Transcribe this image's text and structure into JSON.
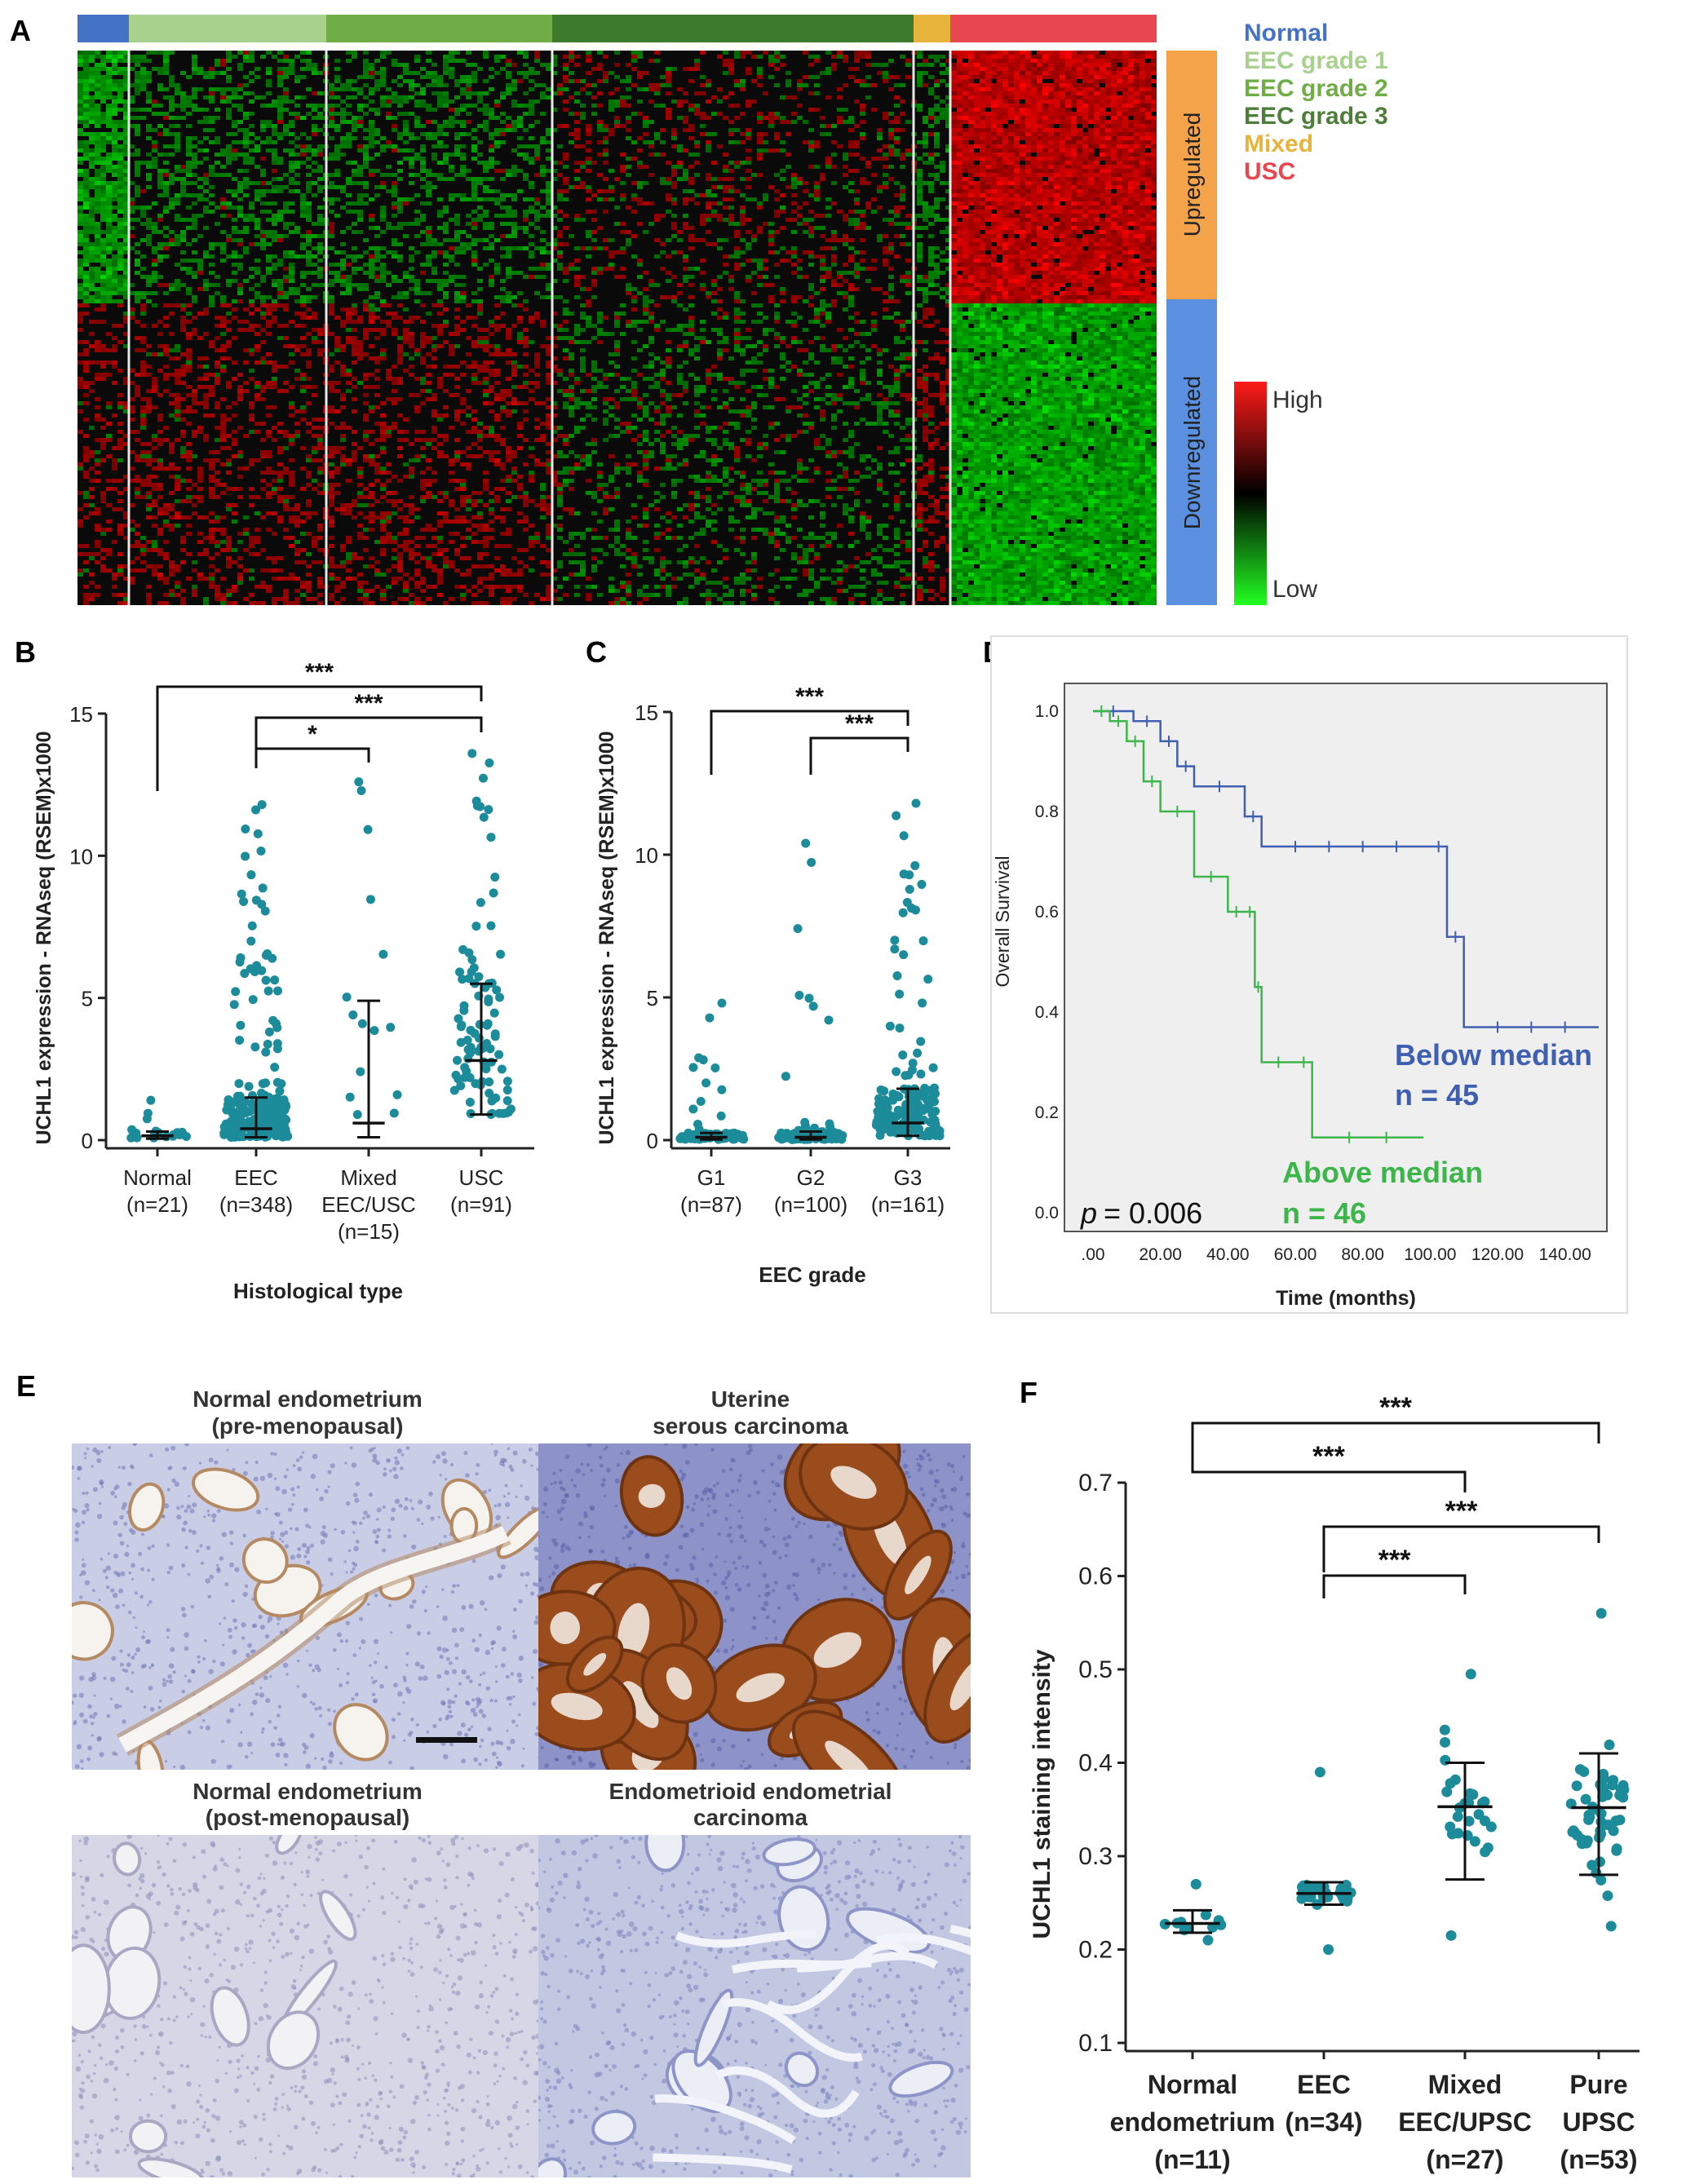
{
  "panels": {
    "A": "A",
    "B": "B",
    "C": "C",
    "D": "D",
    "E": "E",
    "F": "F"
  },
  "panel_a": {
    "legend": [
      {
        "label": "Normal",
        "color": "#4472c4"
      },
      {
        "label": "EEC grade 1",
        "color": "#a9d18e"
      },
      {
        "label": "EEC grade 2",
        "color": "#70ad47"
      },
      {
        "label": "EEC grade 3",
        "color": "#4e7e3a"
      },
      {
        "label": "Mixed",
        "color": "#e8b33a"
      },
      {
        "label": "USC",
        "color": "#e8474f"
      }
    ],
    "groups": [
      {
        "name": "Normal",
        "color": "#4472c4"
      },
      {
        "name": "EEC grade 1",
        "color": "#a9d18e"
      },
      {
        "name": "EEC grade 2",
        "color": "#70ad47"
      },
      {
        "name": "EEC grade 3",
        "color": "#3d7a2e"
      },
      {
        "name": "Mixed",
        "color": "#e8b33a"
      },
      {
        "name": "USC",
        "color": "#e8474f"
      }
    ],
    "up_label": "Upregulated",
    "down_label": "Downregulated",
    "up_color": "#f4a34a",
    "down_color": "#5b8fe0",
    "scale_high": "High",
    "scale_low": "Low"
  },
  "chart_data": [
    {
      "id": "B",
      "type": "scatter",
      "ylabel": "UCHL1 expression - RNAseq  (RSEM)x1000",
      "xlabel": "Histological type",
      "ylim": [
        0,
        15
      ],
      "yticks": [
        "0",
        "5",
        "10",
        "15"
      ],
      "categories": [
        {
          "label": [
            "Normal",
            "(n=21)"
          ],
          "n": 21,
          "median": 0.15,
          "q1": 0.05,
          "q3": 0.3,
          "max": 1.4
        },
        {
          "label": [
            "EEC",
            "(n=348)"
          ],
          "n": 348,
          "median": 0.4,
          "q1": 0.1,
          "q3": 1.5,
          "max": 11.8
        },
        {
          "label": [
            "Mixed",
            "EEC/USC",
            "(n=15)"
          ],
          "n": 15,
          "median": 0.6,
          "q1": 0.1,
          "q3": 4.9,
          "max": 12.6
        },
        {
          "label": [
            "USC",
            "(n=91)"
          ],
          "n": 91,
          "median": 2.8,
          "q1": 0.9,
          "q3": 5.5,
          "max": 13.6
        }
      ],
      "significance": [
        {
          "from": 0,
          "to": 3,
          "label": "***"
        },
        {
          "from": 1,
          "to": 3,
          "label": "***"
        },
        {
          "from": 1,
          "to": 2,
          "label": "*"
        }
      ]
    },
    {
      "id": "C",
      "type": "scatter",
      "ylabel": "UCHL1 expression - RNAseq  (RSEM)x1000",
      "xlabel": "EEC grade",
      "ylim": [
        0,
        15
      ],
      "yticks": [
        "0",
        "5",
        "10",
        "15"
      ],
      "categories": [
        {
          "label": [
            "G1",
            "(n=87)"
          ],
          "n": 87,
          "median": 0.1,
          "q1": 0.02,
          "q3": 0.25,
          "max": 4.8
        },
        {
          "label": [
            "G2",
            "(n=100)"
          ],
          "n": 100,
          "median": 0.1,
          "q1": 0.02,
          "q3": 0.3,
          "max": 10.4
        },
        {
          "label": [
            "G3",
            "(n=161)"
          ],
          "n": 161,
          "median": 0.6,
          "q1": 0.15,
          "q3": 1.8,
          "max": 11.8
        }
      ],
      "significance": [
        {
          "from": 0,
          "to": 2,
          "label": "***"
        },
        {
          "from": 1,
          "to": 2,
          "label": "***"
        }
      ]
    },
    {
      "id": "D",
      "type": "line",
      "ylabel": "Overall Survival",
      "xlabel": "Time (months)",
      "xlim": [
        0,
        150
      ],
      "ylim": [
        0,
        1
      ],
      "xticks": [
        ".00",
        "20.00",
        "40.00",
        "60.00",
        "80.00",
        "100.00",
        "120.00",
        "140.00"
      ],
      "yticks": [
        "0.0",
        "0.2",
        "0.4",
        "0.6",
        "0.8",
        "1.0"
      ],
      "series": [
        {
          "name": "Below median",
          "n_label": "n = 45",
          "color": "#3f5fb0",
          "x": [
            0,
            12,
            20,
            25,
            30,
            45,
            50,
            100,
            105,
            110,
            150
          ],
          "y": [
            1.0,
            0.98,
            0.94,
            0.89,
            0.85,
            0.79,
            0.73,
            0.73,
            0.55,
            0.37,
            0.37
          ]
        },
        {
          "name": "Above median",
          "n_label": "n = 46",
          "color": "#3cb54a",
          "x": [
            0,
            5,
            10,
            15,
            20,
            30,
            40,
            45,
            48,
            50,
            60,
            65,
            98
          ],
          "y": [
            1.0,
            0.98,
            0.94,
            0.86,
            0.8,
            0.67,
            0.6,
            0.6,
            0.45,
            0.3,
            0.3,
            0.15,
            0.15
          ]
        }
      ],
      "p_value": "= 0.006",
      "p_label": "p"
    },
    {
      "id": "F",
      "type": "scatter",
      "ylabel": "UCHL1 staining intensity",
      "ylim": [
        0.1,
        0.7
      ],
      "yticks": [
        "0.1",
        "0.2",
        "0.3",
        "0.4",
        "0.5",
        "0.6",
        "0.7"
      ],
      "categories": [
        {
          "label": [
            "Normal",
            "endometrium",
            "(n=11)"
          ],
          "n": 11,
          "mean": 0.228,
          "sd_low": 0.218,
          "sd_high": 0.242,
          "min": 0.21,
          "max": 0.27
        },
        {
          "label": [
            "EEC",
            "(n=34)"
          ],
          "n": 34,
          "mean": 0.26,
          "sd_low": 0.248,
          "sd_high": 0.272,
          "min": 0.2,
          "max": 0.39
        },
        {
          "label": [
            "Mixed",
            "EEC/UPSC",
            "(n=27)"
          ],
          "n": 27,
          "mean": 0.353,
          "sd_low": 0.275,
          "sd_high": 0.4,
          "min": 0.215,
          "max": 0.495
        },
        {
          "label": [
            "Pure",
            "UPSC",
            "(n=53)"
          ],
          "n": 53,
          "mean": 0.352,
          "sd_low": 0.28,
          "sd_high": 0.41,
          "min": 0.225,
          "max": 0.56
        }
      ],
      "significance": [
        {
          "from": 0,
          "to": 3,
          "label": "***"
        },
        {
          "from": 0,
          "to": 2,
          "label": "***"
        },
        {
          "from": 1,
          "to": 3,
          "label": "***"
        },
        {
          "from": 1,
          "to": 2,
          "label": "***"
        }
      ]
    }
  ],
  "panel_e": {
    "captions": [
      [
        "Normal endometrium",
        "(pre-menopausal)"
      ],
      [
        "Uterine",
        "serous carcinoma"
      ],
      [
        "Normal endometrium",
        "(post-menopausal)"
      ],
      [
        "Endometrioid endometrial",
        "carcinoma"
      ]
    ]
  }
}
